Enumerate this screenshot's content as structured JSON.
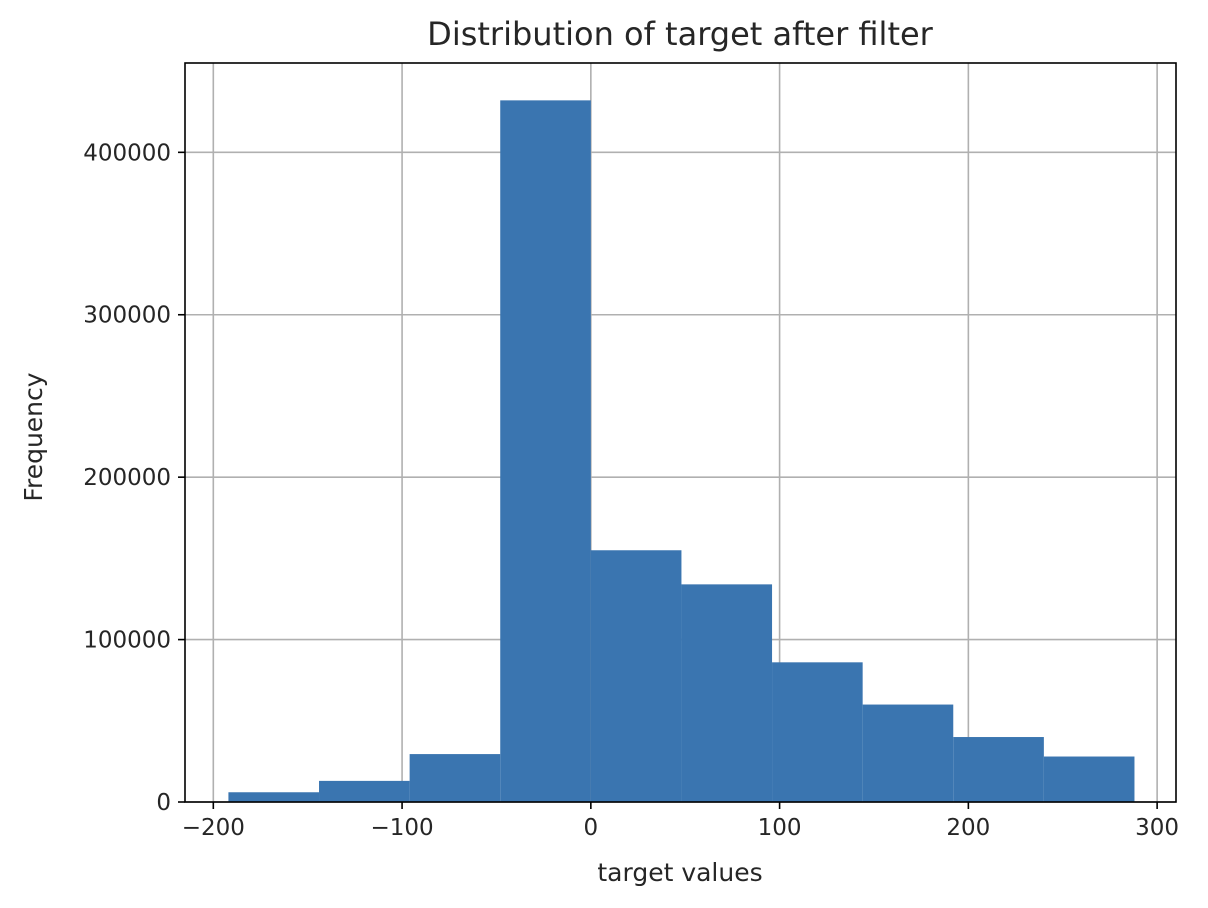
{
  "chart_data": {
    "type": "histogram",
    "title": "Distribution of target after filter",
    "xlabel": "target values",
    "ylabel": "Frequency",
    "xlim": [
      -215,
      310
    ],
    "ylim": [
      0,
      455000
    ],
    "xticks": [
      -200,
      -100,
      0,
      100,
      200,
      300
    ],
    "xtick_labels": [
      "−200",
      "−100",
      "0",
      "100",
      "200",
      "300"
    ],
    "yticks": [
      0,
      100000,
      200000,
      300000,
      400000
    ],
    "ytick_labels": [
      "0",
      "100000",
      "200000",
      "300000",
      "400000"
    ],
    "grid": true,
    "bar_color": "#3a75b0",
    "bins": [
      {
        "x0": -192,
        "x1": -144,
        "count": 6000
      },
      {
        "x0": -144,
        "x1": -96,
        "count": 13000
      },
      {
        "x0": -96,
        "x1": -48,
        "count": 29500
      },
      {
        "x0": -48,
        "x1": 0,
        "count": 432000
      },
      {
        "x0": 0,
        "x1": 48,
        "count": 155000
      },
      {
        "x0": 48,
        "x1": 96,
        "count": 134000
      },
      {
        "x0": 96,
        "x1": 144,
        "count": 86000
      },
      {
        "x0": 144,
        "x1": 192,
        "count": 60000
      },
      {
        "x0": 192,
        "x1": 240,
        "count": 40000
      },
      {
        "x0": 240,
        "x1": 288,
        "count": 28000
      }
    ]
  }
}
